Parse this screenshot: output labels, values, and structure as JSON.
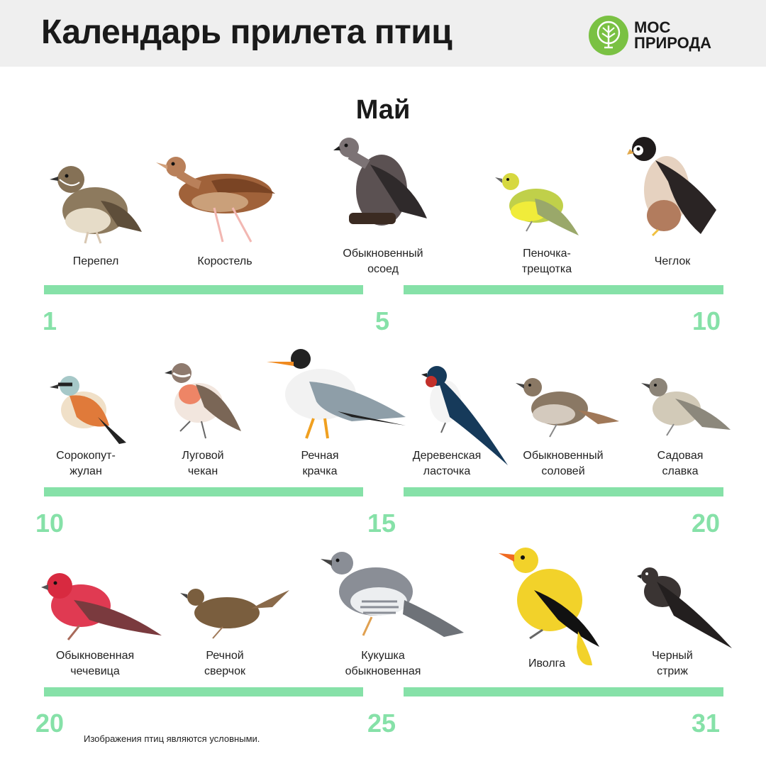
{
  "title": "Календарь прилета птиц",
  "logo": {
    "line1": "МОС",
    "line2": "ПРИРОДА",
    "color": "#7ac143"
  },
  "month": "Май",
  "accent_color": "#86e1a8",
  "rows": [
    {
      "birds": [
        {
          "line1": "Перепел",
          "line2": ""
        },
        {
          "line1": "Коростель",
          "line2": ""
        },
        {
          "line1": "Обыкновенный",
          "line2": "осоед"
        },
        {
          "line1": "Пеночка-",
          "line2": "трещотка"
        },
        {
          "line1": "Чеглок",
          "line2": ""
        }
      ],
      "days": [
        "1",
        "5",
        "10"
      ]
    },
    {
      "birds": [
        {
          "line1": "Сорокопут-",
          "line2": "жулан"
        },
        {
          "line1": "Луговой",
          "line2": "чекан"
        },
        {
          "line1": "Речная",
          "line2": "крачка"
        },
        {
          "line1": "Деревенская",
          "line2": "ласточка"
        },
        {
          "line1": "Обыкновенный",
          "line2": "соловей"
        },
        {
          "line1": "Садовая",
          "line2": "славка"
        }
      ],
      "days": [
        "10",
        "15",
        "20"
      ]
    },
    {
      "birds": [
        {
          "line1": "Обыкновенная",
          "line2": "чечевица"
        },
        {
          "line1": "Речной",
          "line2": "сверчок"
        },
        {
          "line1": "Кукушка",
          "line2": "обыкновенная"
        },
        {
          "line1": "Иволга",
          "line2": ""
        },
        {
          "line1": "Черный",
          "line2": "стриж"
        }
      ],
      "days": [
        "20",
        "25",
        "31"
      ]
    }
  ],
  "footnote": "Изображения птиц являются условными."
}
